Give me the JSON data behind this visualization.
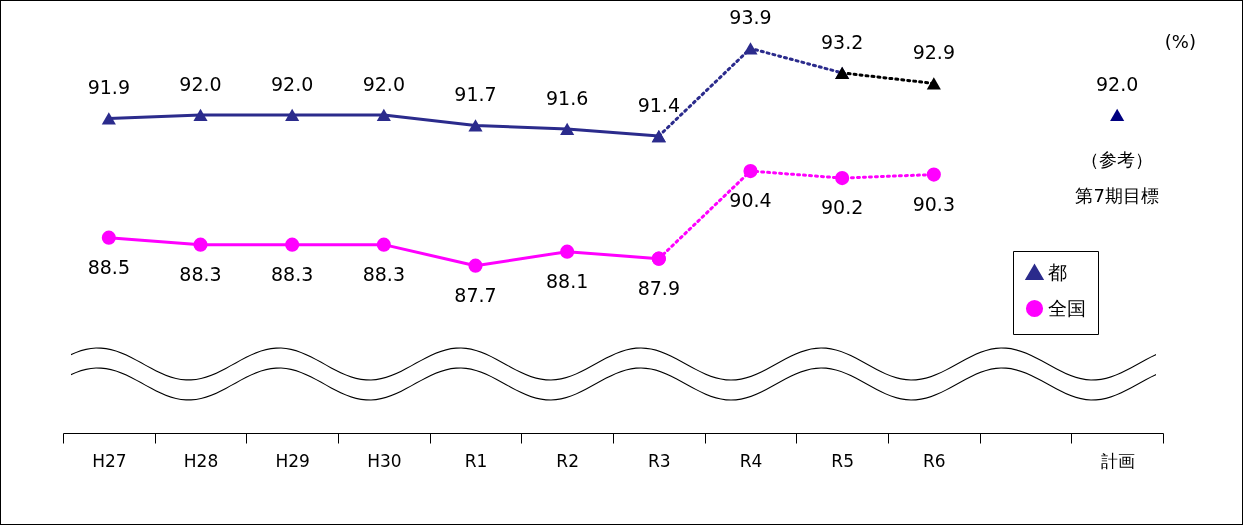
{
  "chart_data": {
    "type": "line",
    "ylabel": "(%)",
    "categories": [
      "H27",
      "H28",
      "H29",
      "H30",
      "R1",
      "R2",
      "R3",
      "R4",
      "R5",
      "R6",
      null,
      "計画"
    ],
    "series": [
      {
        "name": "都",
        "color": "#2b2b8c",
        "marker": "triangle",
        "line_style": "solid",
        "values": [
          91.9,
          92.0,
          92.0,
          92.0,
          91.7,
          91.6,
          91.4,
          null,
          null,
          null,
          null,
          null
        ],
        "value_labels": [
          "91.9",
          "92.0",
          "92.0",
          "92.0",
          "91.7",
          "91.6",
          "91.4",
          null,
          null,
          null,
          null,
          null
        ]
      },
      {
        "color": "#2b2b8c",
        "marker": "triangle",
        "line_style": "dotted",
        "values": [
          null,
          null,
          null,
          null,
          null,
          null,
          91.4,
          93.9,
          93.2,
          null,
          null,
          null
        ],
        "value_labels": [
          null,
          null,
          null,
          null,
          null,
          null,
          null,
          "93.9",
          "93.2",
          null,
          null,
          null
        ]
      },
      {
        "color": "#000000",
        "marker": "triangle",
        "line_style": "dotted",
        "values": [
          null,
          null,
          null,
          null,
          null,
          null,
          null,
          null,
          93.2,
          92.9,
          null,
          null
        ],
        "value_labels": [
          null,
          null,
          null,
          null,
          null,
          null,
          null,
          null,
          null,
          "92.9",
          null,
          null
        ]
      },
      {
        "type": "scatter",
        "color": "#000080",
        "marker": "triangle",
        "values": [
          null,
          null,
          null,
          null,
          null,
          null,
          null,
          null,
          null,
          null,
          null,
          92.0
        ],
        "value_labels": [
          null,
          null,
          null,
          null,
          null,
          null,
          null,
          null,
          null,
          null,
          null,
          "92.0"
        ]
      },
      {
        "name": "全国",
        "color": "#ff00ff",
        "marker": "circle",
        "line_style": "solid",
        "values": [
          88.5,
          88.3,
          88.3,
          88.3,
          87.7,
          88.1,
          87.9,
          null,
          null,
          null,
          null,
          null
        ],
        "value_labels": [
          "88.5",
          "88.3",
          "88.3",
          "88.3",
          "87.7",
          "88.1",
          "87.9",
          null,
          null,
          null,
          null,
          null
        ]
      },
      {
        "color": "#ff00ff",
        "marker": "circle",
        "line_style": "dotted",
        "values": [
          null,
          null,
          null,
          null,
          null,
          null,
          87.9,
          90.4,
          90.2,
          90.3,
          null,
          null
        ],
        "value_labels": [
          null,
          null,
          null,
          null,
          null,
          null,
          null,
          "90.4",
          "90.2",
          "90.3",
          null,
          null
        ]
      }
    ],
    "annotations": [
      "（参考）",
      "第7期目標"
    ],
    "legend": "right",
    "grid": false
  }
}
